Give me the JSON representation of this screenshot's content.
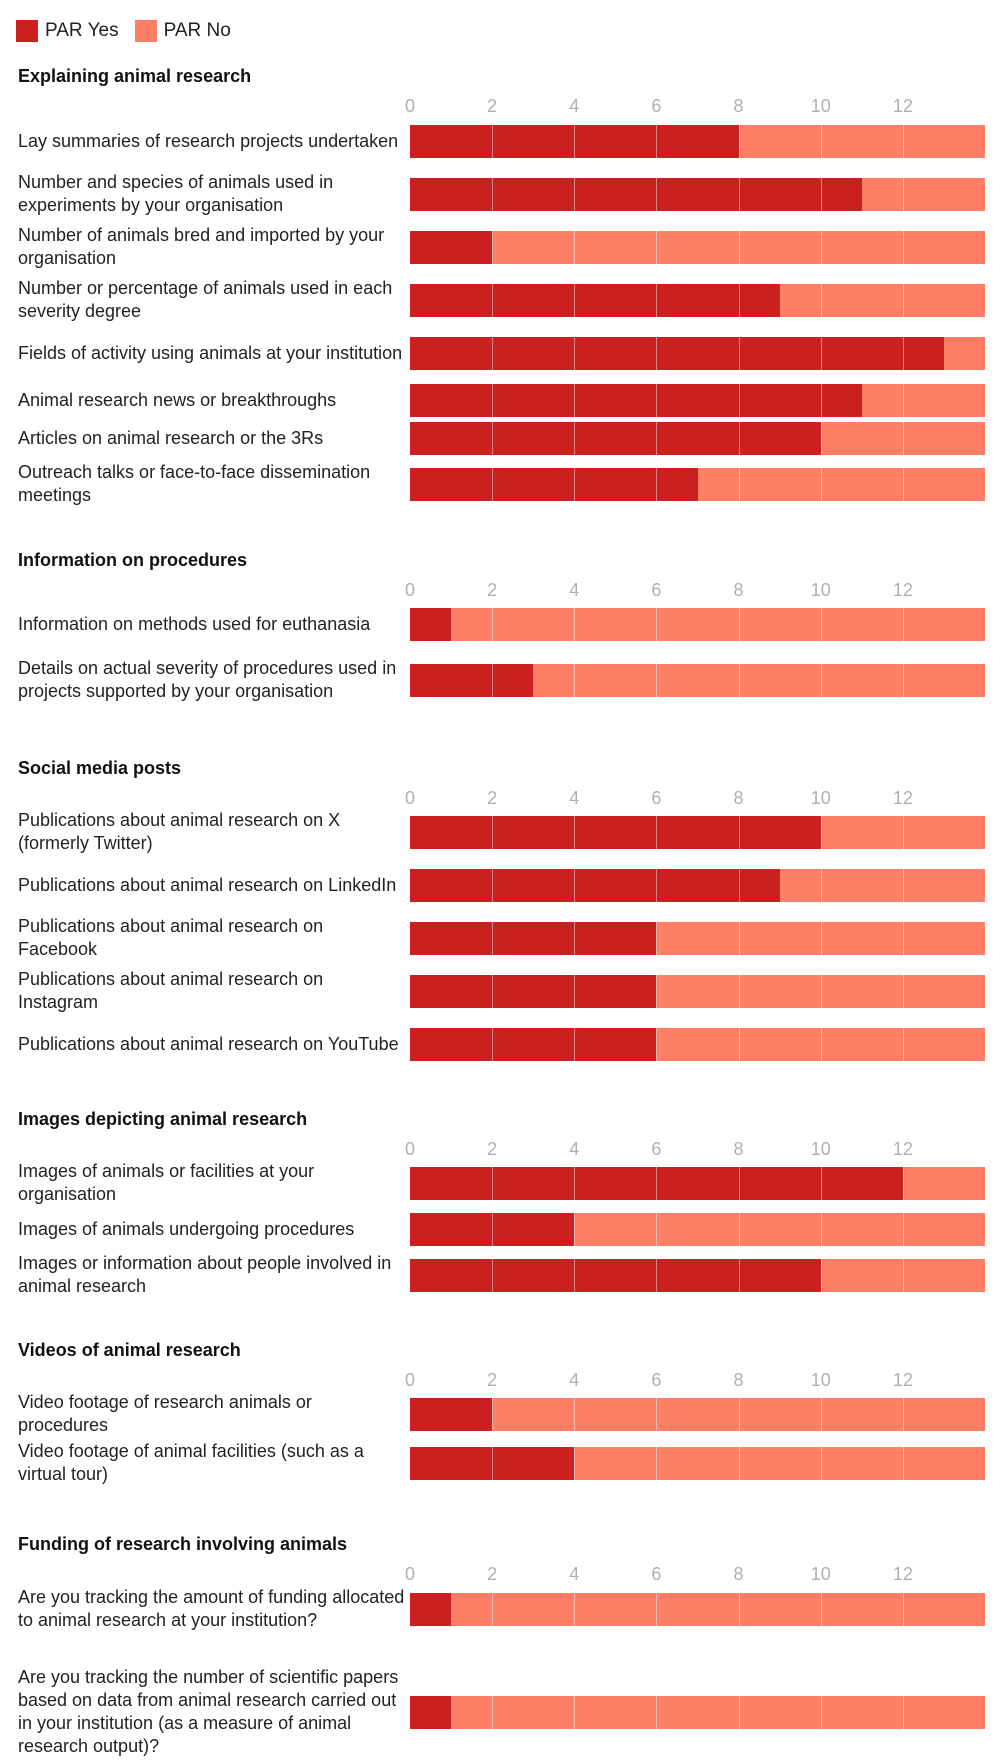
{
  "legend": {
    "items": [
      {
        "label": "PAR Yes",
        "color": "#cb2020"
      },
      {
        "label": "PAR No",
        "color": "#ff7f66"
      }
    ]
  },
  "chart_data": {
    "type": "bar",
    "orientation": "horizontal",
    "stacked": true,
    "axis_max": 14,
    "ticks": [
      0,
      2,
      4,
      6,
      8,
      10,
      12
    ],
    "grid": true,
    "legend_position": "top-left",
    "series_names": [
      "PAR Yes",
      "PAR No"
    ],
    "sections": [
      {
        "title": "Explaining animal research",
        "rows": [
          {
            "label": "Lay summaries of research projects undertaken",
            "yes": 8,
            "no": 6
          },
          {
            "label": "Number and species of animals used in experiments by your organisation",
            "yes": 11,
            "no": 3
          },
          {
            "label": "Number of animals bred and imported by your organisation",
            "yes": 2,
            "no": 12
          },
          {
            "label": "Number or percentage of animals used in each severity degree",
            "yes": 9,
            "no": 5
          },
          {
            "label": "Fields of activity using animals at your institution",
            "yes": 13,
            "no": 1
          },
          {
            "label": "Animal research news or breakthroughs",
            "yes": 11,
            "no": 3
          },
          {
            "label": "Articles on animal research or the 3Rs",
            "yes": 10,
            "no": 4
          },
          {
            "label": "Outreach talks or face-to-face dissemination meetings",
            "yes": 7,
            "no": 7
          }
        ]
      },
      {
        "title": "Information on procedures",
        "rows": [
          {
            "label": "Information on methods used for euthanasia",
            "yes": 1,
            "no": 13
          },
          {
            "label": "Details on actual severity of procedures used in projects supported by your organisation",
            "yes": 3,
            "no": 11
          }
        ]
      },
      {
        "title": "Social media posts",
        "rows": [
          {
            "label": "Publications about animal research on X (formerly Twitter)",
            "yes": 10,
            "no": 4
          },
          {
            "label": "Publications about animal research on LinkedIn",
            "yes": 9,
            "no": 5
          },
          {
            "label": "Publications about animal research on Facebook",
            "yes": 6,
            "no": 8
          },
          {
            "label": "Publications about animal research on Instagram",
            "yes": 6,
            "no": 8
          },
          {
            "label": "Publications about animal research on YouTube",
            "yes": 6,
            "no": 8
          }
        ]
      },
      {
        "title": "Images depicting animal research",
        "rows": [
          {
            "label": "Images of animals or facilities at your organisation",
            "yes": 12,
            "no": 2
          },
          {
            "label": "Images of animals undergoing procedures",
            "yes": 4,
            "no": 10
          },
          {
            "label": "Images or information about people involved in animal research",
            "yes": 10,
            "no": 4
          }
        ]
      },
      {
        "title": "Videos of animal research",
        "rows": [
          {
            "label": "Video footage of research animals or procedures",
            "yes": 2,
            "no": 12
          },
          {
            "label": "Video footage of animal facilities (such as a virtual tour)",
            "yes": 4,
            "no": 10
          }
        ]
      },
      {
        "title": "Funding of research involving animals",
        "rows": [
          {
            "label": "Are you tracking the amount of funding allocated to animal research at your institution?",
            "yes": 1,
            "no": 13
          },
          {
            "label": "Are you tracking the number of scientific papers based on data from animal research carried out in your institution (as a measure of animal research output)?",
            "yes": 1,
            "no": 13
          }
        ]
      }
    ]
  }
}
